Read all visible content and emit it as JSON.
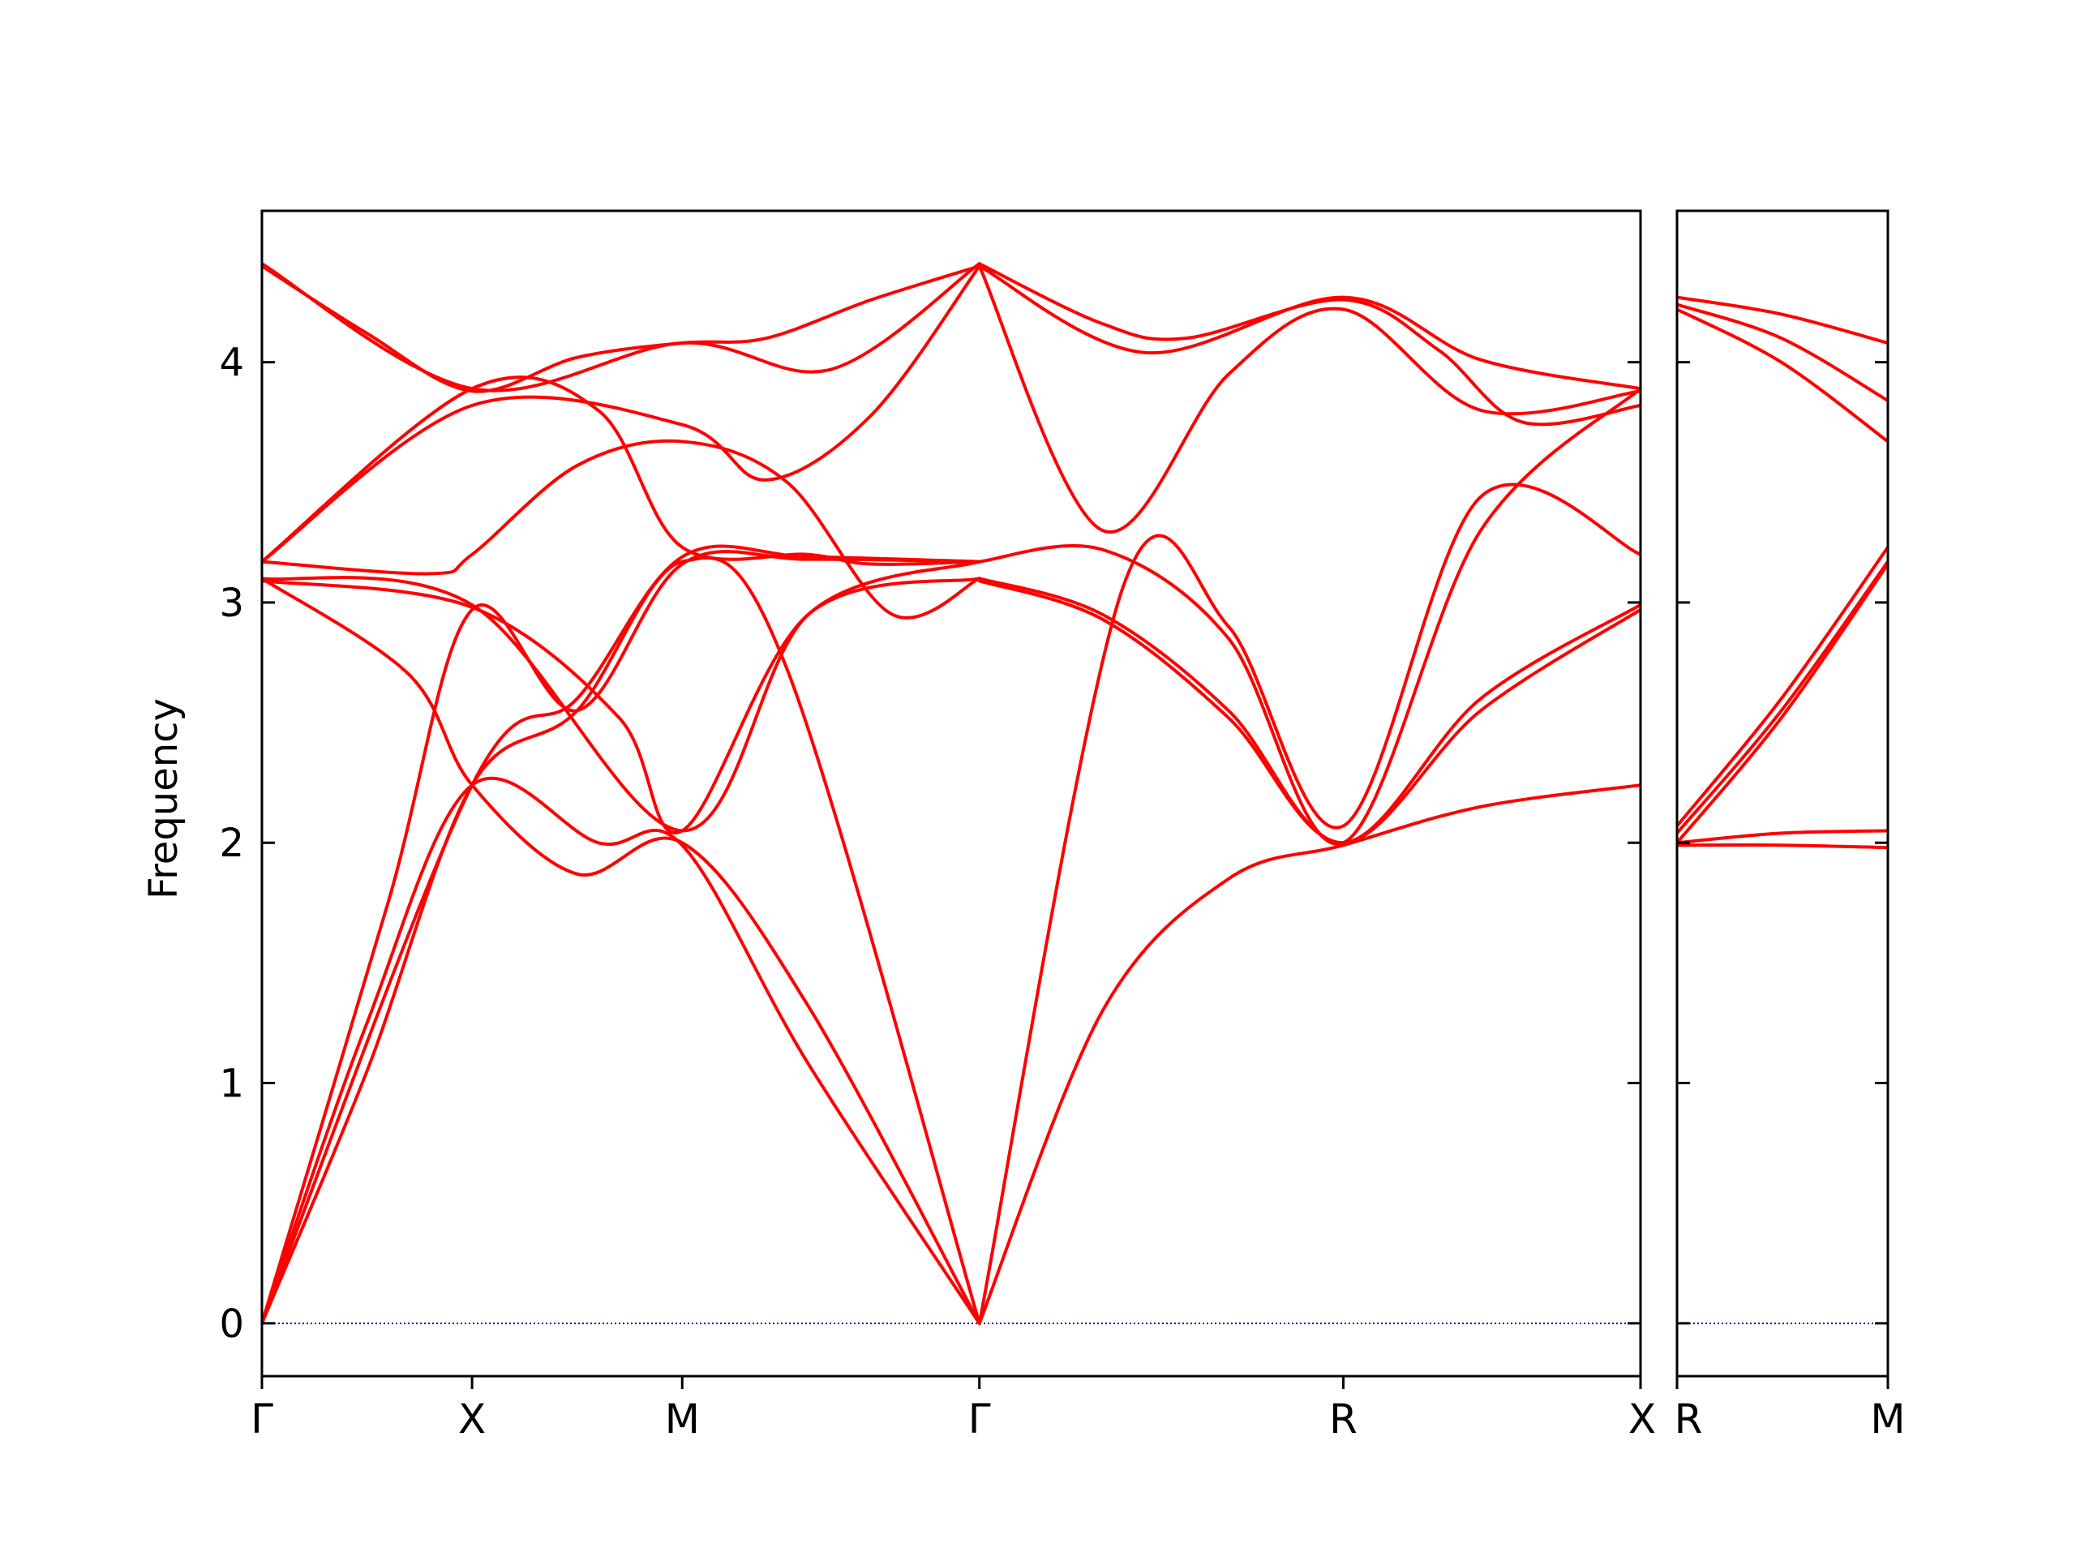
{
  "chart_data": {
    "type": "line",
    "ylabel": "Frequency",
    "ylim": [
      -0.22,
      4.63
    ],
    "yticks": [
      0,
      1,
      2,
      3,
      4
    ],
    "grid": false,
    "colors": {
      "bands": "#ff0000",
      "zero_line": "#0000aa",
      "frame": "#000000"
    },
    "panels": [
      {
        "path": [
          "Γ",
          "X",
          "M",
          "Γ",
          "R",
          "X"
        ],
        "tick_positions": [
          0,
          0.5,
          1,
          1.7071,
          2.5731,
          3.2802
        ],
        "xlim": [
          0,
          3.2802
        ],
        "bands": [
          {
            "x": [
              0,
              0.5,
              1,
              1.3536,
              1.7071
            ],
            "y": [
              4.41,
              3.89,
              4.08,
              3.97,
              4.41
            ]
          },
          {
            "x": [
              0,
              0.25,
              0.5,
              0.75,
              1,
              1.2,
              1.45,
              1.7071
            ],
            "y": [
              4.4,
              4.12,
              3.88,
              4.02,
              4.08,
              4.1,
              4.26,
              4.4
            ]
          },
          {
            "x": [
              0,
              0.5,
              1,
              1.2,
              1.45,
              1.7071
            ],
            "y": [
              3.17,
              3.82,
              3.74,
              3.51,
              3.78,
              4.4
            ]
          },
          {
            "x": [
              0,
              0.4,
              0.5,
              0.75,
              1,
              1.25,
              1.5,
              1.7071
            ],
            "y": [
              3.17,
              3.12,
              3.2,
              3.57,
              3.67,
              3.5,
              2.95,
              3.1
            ]
          },
          {
            "x": [
              0,
              0.5,
              0.8,
              1,
              1.3,
              1.45,
              1.7071
            ],
            "y": [
              3.17,
              3.89,
              3.8,
              3.23,
              3.2,
              3.16,
              3.17
            ]
          },
          {
            "x": [
              0,
              0.5,
              1,
              1.3,
              1.7071
            ],
            "y": [
              3.1,
              2.99,
              2.05,
              2.95,
              3.17
            ]
          },
          {
            "x": [
              0,
              0.5,
              0.85,
              1,
              1.3,
              1.7071
            ],
            "y": [
              3.09,
              2.98,
              2.52,
              2.05,
              2.95,
              3.1
            ]
          },
          {
            "x": [
              0,
              0.35,
              0.5,
              0.75,
              1,
              1.3,
              1.7071
            ],
            "y": [
              3.1,
              2.7,
              2.24,
              1.87,
              2.0,
              1.32,
              0.0
            ]
          },
          {
            "x": [
              0,
              0.25,
              0.5,
              0.8,
              1,
              1.3,
              1.7071
            ],
            "y": [
              0.0,
              1.25,
              2.24,
              2.0,
              1.99,
              1.08,
              0.0
            ]
          },
          {
            "x": [
              0,
              0.3,
              0.5,
              0.75,
              1,
              1.3,
              1.7071
            ],
            "y": [
              0.0,
              1.75,
              2.97,
              2.55,
              3.16,
              3.18,
              3.17
            ]
          },
          {
            "x": [
              0,
              0.5,
              0.75,
              1,
              1.3,
              1.7071
            ],
            "y": [
              0.0,
              2.24,
              2.6,
              3.19,
              3.19,
              3.17
            ]
          },
          {
            "x": [
              0,
              0.25,
              0.5,
              0.75,
              1,
              1.25,
              1.7071
            ],
            "y": [
              0.0,
              1.05,
              2.24,
              2.55,
              3.17,
              2.72,
              0.0
            ]
          },
          {
            "x": [
              1.7071,
              2.0,
              2.2,
              2.5731,
              2.8,
              3.0,
              3.2802
            ],
            "y": [
              4.41,
              4.16,
              4.1,
              4.26,
              4.05,
              3.75,
              3.82
            ]
          },
          {
            "x": [
              1.7071,
              2.1,
              2.5731,
              2.9,
              3.2802
            ],
            "y": [
              4.4,
              4.04,
              4.27,
              4.01,
              3.89
            ]
          },
          {
            "x": [
              1.7071,
              2.05,
              2.3,
              2.5731,
              2.9,
              3.2802
            ],
            "y": [
              0.0,
              3.07,
              2.9,
              2.07,
              3.44,
              3.2
            ]
          },
          {
            "x": [
              1.7071,
              2.0,
              2.3,
              2.5731,
              2.9,
              3.2802
            ],
            "y": [
              3.17,
              3.22,
              2.85,
              2.0,
              3.3,
              3.89
            ]
          },
          {
            "x": [
              1.7071,
              2.0,
              2.3,
              2.5731,
              2.9,
              3.2802
            ],
            "y": [
              3.1,
              2.95,
              2.55,
              2.0,
              2.6,
              2.99
            ]
          },
          {
            "x": [
              1.7071,
              2.0,
              2.3,
              2.5731,
              2.9,
              3.2802
            ],
            "y": [
              3.09,
              2.93,
              2.52,
              2.0,
              2.55,
              2.97
            ]
          },
          {
            "x": [
              1.7071,
              2.0,
              2.3,
              2.5731,
              2.9,
              3.2802
            ],
            "y": [
              0.0,
              1.3,
              1.85,
              1.99,
              2.15,
              2.24
            ]
          },
          {
            "x": [
              1.7071,
              2.0,
              2.3,
              2.5731,
              2.9,
              3.2802
            ],
            "y": [
              4.4,
              3.3,
              3.95,
              4.22,
              3.8,
              3.88
            ]
          }
        ]
      },
      {
        "path": [
          "R",
          "M"
        ],
        "tick_positions": [
          0,
          0.7071
        ],
        "xlim": [
          0,
          0.7071
        ],
        "bands": [
          {
            "x": [
              0,
              0.35,
              0.7071
            ],
            "y": [
              4.27,
              4.2,
              4.08
            ]
          },
          {
            "x": [
              0,
              0.35,
              0.7071
            ],
            "y": [
              4.24,
              4.1,
              3.84
            ]
          },
          {
            "x": [
              0,
              0.35,
              0.7071
            ],
            "y": [
              4.22,
              4.0,
              3.67
            ]
          },
          {
            "x": [
              0,
              0.35,
              0.7071
            ],
            "y": [
              2.07,
              2.6,
              3.23
            ]
          },
          {
            "x": [
              0,
              0.35,
              0.7071
            ],
            "y": [
              2.04,
              2.55,
              3.17
            ]
          },
          {
            "x": [
              0,
              0.35,
              0.7071
            ],
            "y": [
              2.0,
              2.52,
              3.16
            ]
          },
          {
            "x": [
              0,
              0.35,
              0.7071
            ],
            "y": [
              2.0,
              2.04,
              2.05
            ]
          },
          {
            "x": [
              0,
              0.35,
              0.7071
            ],
            "y": [
              1.99,
              1.99,
              1.98
            ]
          }
        ]
      }
    ]
  }
}
